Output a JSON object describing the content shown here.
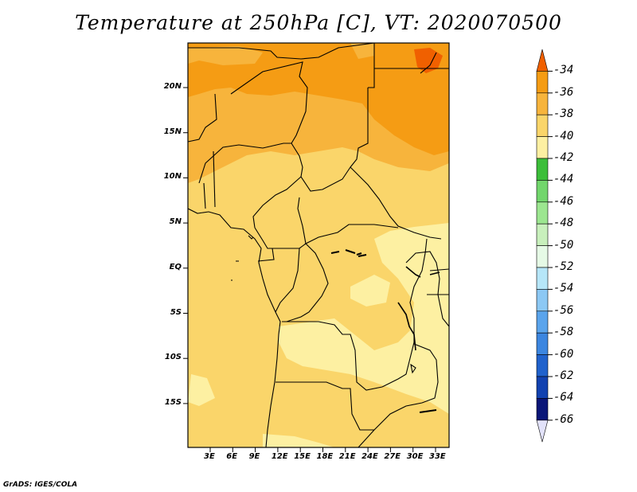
{
  "title": "Temperature at 250hPa [C], VT: 2020070500",
  "credit": "GrADS: IGES/COLA",
  "chart_data": {
    "type": "map",
    "variable": "Temperature at 250hPa",
    "units": "C",
    "valid_time": "2020070500",
    "lat_ticks": [
      "20N",
      "15N",
      "10N",
      "5N",
      "EQ",
      "5S",
      "10S",
      "15S"
    ],
    "lon_ticks": [
      "3E",
      "6E",
      "9E",
      "12E",
      "15E",
      "18E",
      "21E",
      "24E",
      "27E",
      "30E",
      "33E"
    ],
    "colorbar": {
      "labels": [
        "-34",
        "-36",
        "-38",
        "-40",
        "-42",
        "-44",
        "-46",
        "-48",
        "-50",
        "-52",
        "-54",
        "-56",
        "-58",
        "-60",
        "-62",
        "-64",
        "-66"
      ],
      "colors": [
        "#f06000",
        "#f59c14",
        "#f7b43c",
        "#fad56a",
        "#fdf0a2",
        "#3cbe3a",
        "#72d66c",
        "#9ce690",
        "#c8f0bc",
        "#e6fae6",
        "#b6e6f8",
        "#8cc8f4",
        "#5aa4ec",
        "#3c86e0",
        "#2062cc",
        "#1242b0",
        "#0a1678",
        "#e2e2fa"
      ]
    },
    "fields": [
      {
        "label": "-34",
        "region": "far north-east corner"
      },
      {
        "label": "-36",
        "region": "northern band above ~10N"
      },
      {
        "label": "-38",
        "region": "north 10N–20N"
      },
      {
        "label": "-40",
        "region": "central and western domain"
      },
      {
        "label": "-42",
        "region": "south-central and east (Congo basin / Angola)"
      }
    ]
  }
}
